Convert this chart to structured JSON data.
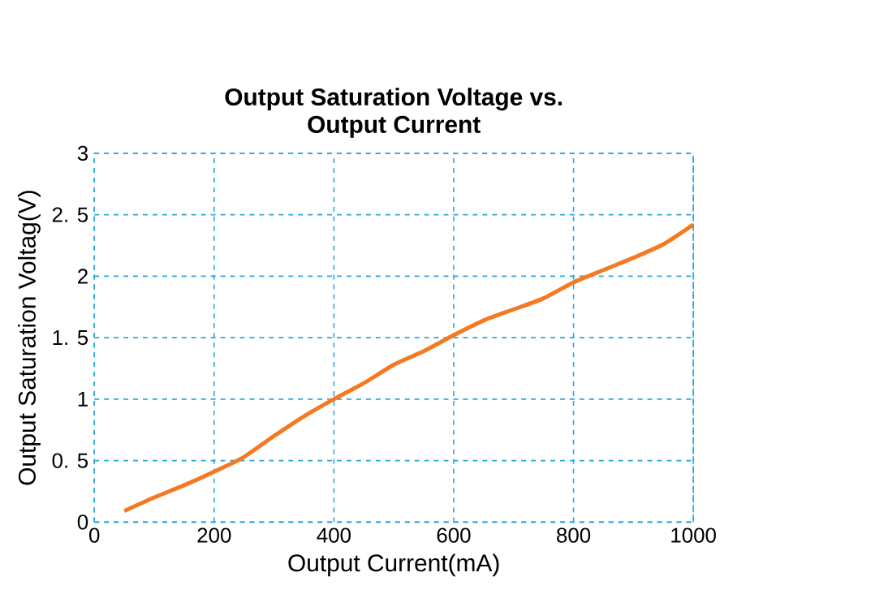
{
  "chart_data": {
    "type": "line",
    "title": "Output Saturation Voltage vs.\nOutput Current",
    "xlabel": "Output Current(mA)",
    "ylabel": "Output Saturation Voltag(V)",
    "x": [
      50,
      100,
      150,
      200,
      250,
      300,
      350,
      400,
      450,
      500,
      550,
      600,
      650,
      700,
      750,
      800,
      850,
      900,
      950,
      1000
    ],
    "values": [
      0.09,
      0.2,
      0.3,
      0.41,
      0.53,
      0.7,
      0.86,
      1.0,
      1.13,
      1.28,
      1.39,
      1.52,
      1.64,
      1.73,
      1.82,
      1.95,
      2.05,
      2.15,
      2.26,
      2.42
    ],
    "color": "#f47920",
    "xlim": [
      0,
      1000
    ],
    "ylim": [
      0,
      3
    ],
    "xticks": [
      0,
      200,
      400,
      600,
      800,
      1000
    ],
    "yticks": [
      0,
      {
        "value": 0.5,
        "label": "0. 5"
      },
      1,
      {
        "value": 1.5,
        "label": "1. 5"
      },
      2,
      {
        "value": 2.5,
        "label": "2. 5"
      },
      3
    ],
    "grid": true,
    "line_style": "solid",
    "marker": "none"
  }
}
